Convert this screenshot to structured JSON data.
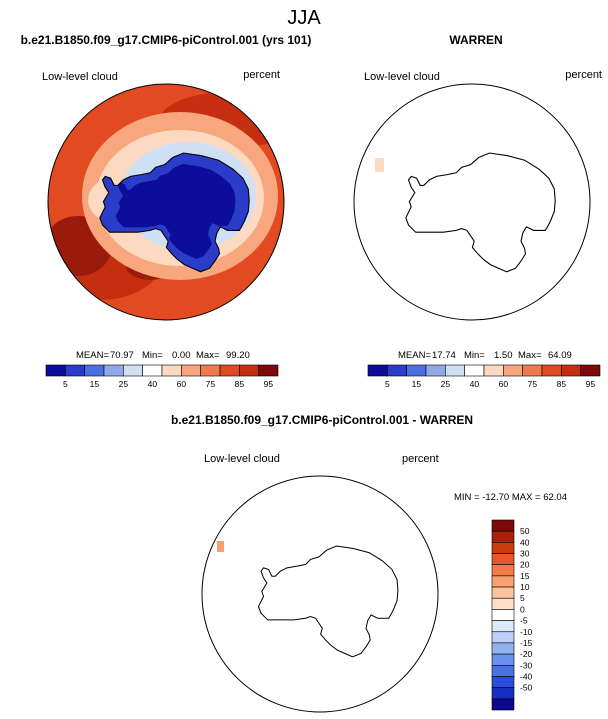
{
  "chart_data": {
    "type": "heatmap",
    "title": "JJA",
    "colors": {
      "seq": [
        "#0d0d9c",
        "#2a3cc8",
        "#4a6fe0",
        "#8fa8e8",
        "#cfdff4",
        "#ffffff",
        "#fcd9c0",
        "#f8a67e",
        "#f07a4a",
        "#e24a22",
        "#c62e10",
        "#7c0a0a"
      ],
      "diff": [
        "#0a0a8a",
        "#1530c0",
        "#2a4ed8",
        "#4a70e6",
        "#6c92ee",
        "#93b2f2",
        "#bccff6",
        "#dde8fa",
        "#ffffff",
        "#fde0cc",
        "#fbc29e",
        "#f8a070",
        "#f27c48",
        "#e65a26",
        "#cc3a12",
        "#a82008",
        "#7a0a0a"
      ],
      "coast": "#000000"
    },
    "panels": [
      {
        "title": "b.e21.B1850.f09_g17.CMIP6-piControl.001 (yrs 101)",
        "left_label": "Low-level cloud",
        "right_label": "percent",
        "mean_label": "MEAN=",
        "mean": "70.97",
        "min_label": "Min=",
        "min": "0.00",
        "max_label": "Max=",
        "max": "99.20",
        "colorbar_ticks": [
          "5",
          "15",
          "25",
          "40",
          "60",
          "75",
          "85",
          "95"
        ],
        "field": "filled"
      },
      {
        "title": "WARREN",
        "left_label": "Low-level cloud",
        "right_label": "percent",
        "mean_label": "MEAN=",
        "mean": "17.74",
        "min_label": "Min=",
        "min": "1.50",
        "max_label": "Max=",
        "max": "64.09",
        "colorbar_ticks": [
          "5",
          "15",
          "25",
          "40",
          "60",
          "75",
          "85",
          "95"
        ],
        "field": "sparse"
      },
      {
        "title": "b.e21.B1850.f09_g17.CMIP6-piControl.001 - WARREN",
        "left_label": "Low-level cloud",
        "right_label": "percent",
        "minmax_text": "MIN = -12.70 MAX = 62.04",
        "colorbar_ticks": [
          "50",
          "40",
          "30",
          "20",
          "15",
          "10",
          "5",
          "0",
          "-5",
          "-10",
          "-15",
          "-20",
          "-30",
          "-40",
          "-50"
        ],
        "field": "sparse"
      }
    ]
  }
}
